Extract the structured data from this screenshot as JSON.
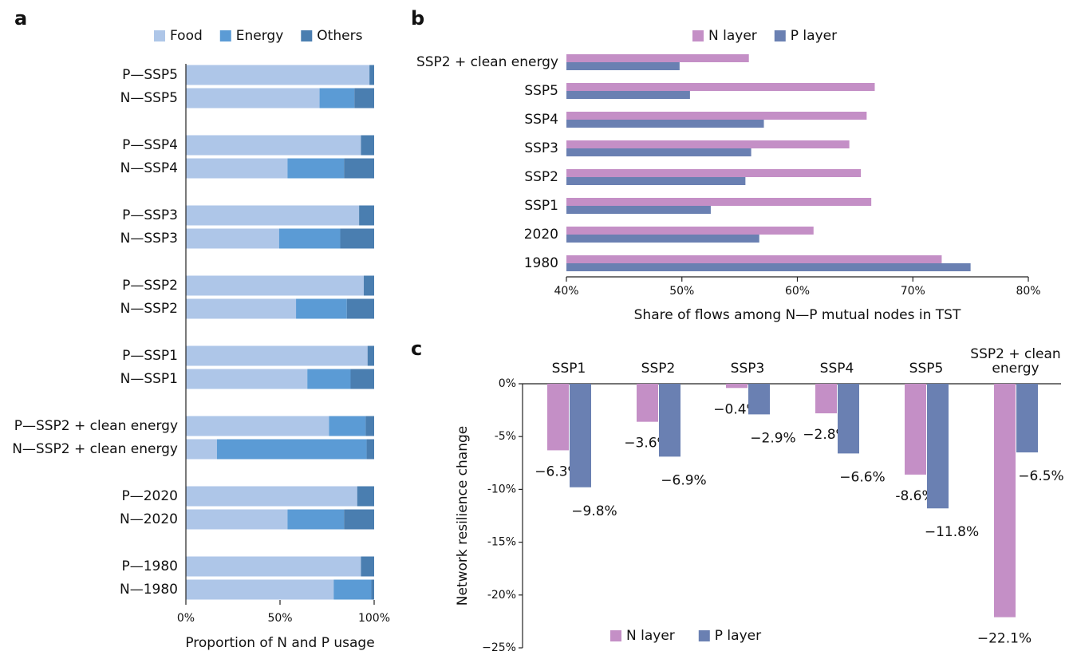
{
  "chart_data": [
    {
      "panel": "a",
      "type": "bar",
      "orientation": "horizontal",
      "stacked": true,
      "categories": [
        "P—SSP5",
        "N—SSP5",
        "P—SSP4",
        "N—SSP4",
        "P—SSP3",
        "N—SSP3",
        "P—SSP2",
        "N—SSP2",
        "P—SSP1",
        "N—SSP1",
        "P—SSP2 + clean energy",
        "N—SSP2 + clean energy",
        "P—2020",
        "N—2020",
        "P—1980",
        "N—1980"
      ],
      "series": [
        {
          "name": "Food",
          "color": "#aec6e8",
          "values": [
            97.5,
            71,
            93,
            54,
            92,
            49.5,
            94.5,
            58.5,
            96.5,
            64.5,
            76,
            16.5,
            91,
            54,
            93,
            78.5
          ]
        },
        {
          "name": "Energy",
          "color": "#5b9bd5",
          "values": [
            0,
            18.5,
            0,
            30,
            0,
            32.5,
            0,
            27,
            0,
            23,
            19.5,
            79.5,
            0,
            30,
            0,
            20
          ]
        },
        {
          "name": "Others",
          "color": "#4a7eb0",
          "values": [
            2.5,
            10.5,
            7,
            16,
            8,
            18,
            5.5,
            14.5,
            3.5,
            12.5,
            4.5,
            4,
            9,
            16,
            7,
            1.5
          ]
        }
      ],
      "xlim": [
        0,
        100
      ],
      "xticks": [
        {
          "value": 0,
          "label": "0%"
        },
        {
          "value": 50,
          "label": "50%"
        },
        {
          "value": 100,
          "label": "100%"
        }
      ],
      "xlabel": "Proportion of N and P usage",
      "legend": "top-right"
    },
    {
      "panel": "b",
      "type": "bar",
      "orientation": "horizontal",
      "stacked": false,
      "categories": [
        "SSP2 + clean energy",
        "SSP5",
        "SSP4",
        "SSP3",
        "SSP2",
        "SSP1",
        "2020",
        "1980"
      ],
      "series": [
        {
          "name": "N layer",
          "color": "#c48fc6",
          "values": [
            55.8,
            66.7,
            66.0,
            64.5,
            65.5,
            66.4,
            61.4,
            72.5
          ]
        },
        {
          "name": "P layer",
          "color": "#6a80b2",
          "values": [
            49.8,
            50.7,
            57.1,
            56.0,
            55.5,
            52.5,
            56.7,
            75.0
          ]
        }
      ],
      "xlim": [
        40,
        80
      ],
      "xticks": [
        {
          "value": 40,
          "label": "40%"
        },
        {
          "value": 50,
          "label": "50%"
        },
        {
          "value": 60,
          "label": "60%"
        },
        {
          "value": 70,
          "label": "70%"
        },
        {
          "value": 80,
          "label": "80%"
        }
      ],
      "xlabel": "Share of flows among N—P mutual nodes in TST",
      "legend": "top"
    },
    {
      "panel": "c",
      "type": "bar",
      "orientation": "vertical",
      "stacked": false,
      "categories": [
        "SSP1",
        "SSP2",
        "SSP3",
        "SSP4",
        "SSP5",
        "SSP2 + clean energy"
      ],
      "series": [
        {
          "name": "N layer",
          "color": "#c48fc6",
          "values": [
            -6.3,
            -3.6,
            -0.4,
            -2.8,
            -8.6,
            -22.1
          ],
          "value_labels": [
            "−6.3%",
            "−3.6%",
            "−0.4%",
            "−2.8%",
            "-8.6%",
            "−22.1%"
          ]
        },
        {
          "name": "P layer",
          "color": "#6a80b2",
          "values": [
            -9.8,
            -6.9,
            -2.9,
            -6.6,
            -11.8,
            -6.5
          ],
          "value_labels": [
            "−9.8%",
            "−6.9%",
            "−2.9%",
            "−6.6%",
            "−11.8%",
            "−6.5%"
          ]
        }
      ],
      "ylim": [
        -25,
        0
      ],
      "yticks": [
        {
          "value": 0,
          "label": "0%"
        },
        {
          "value": -5,
          "label": "-5%"
        },
        {
          "value": -10,
          "label": "-10%"
        },
        {
          "value": -15,
          "label": "-15%"
        },
        {
          "value": -20,
          "label": "-20%"
        },
        {
          "value": -25,
          "label": "−25%"
        }
      ],
      "ylabel": "Network resilience change",
      "legend": "bottom"
    }
  ]
}
